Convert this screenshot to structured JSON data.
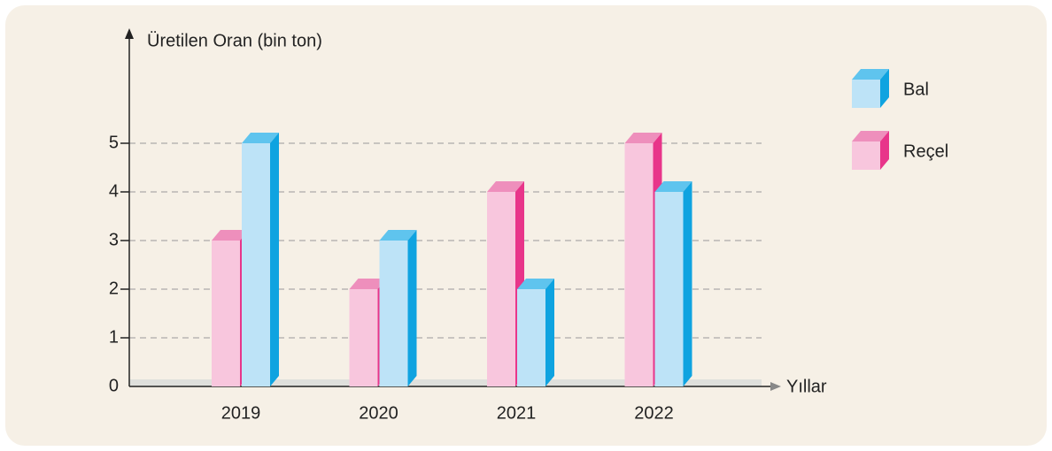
{
  "chart_data": {
    "type": "bar3d",
    "y_label": "Üretilen Oran (bin ton)",
    "x_label": "Yıllar",
    "categories": [
      "2019",
      "2020",
      "2021",
      "2022"
    ],
    "series": [
      {
        "name": "Reçel",
        "color": "#f8c6dd",
        "top_color": "#ee8fbc",
        "side_color": "#e8358a",
        "values": [
          3,
          2,
          4,
          5
        ]
      },
      {
        "name": "Bal",
        "color": "#bde3f7",
        "top_color": "#5fc4ee",
        "side_color": "#0fa3e0",
        "values": [
          5,
          3,
          2,
          4
        ]
      }
    ],
    "ylim": [
      0,
      7
    ],
    "yticks": [
      0,
      1,
      2,
      3,
      4,
      5
    ],
    "grid": true
  }
}
